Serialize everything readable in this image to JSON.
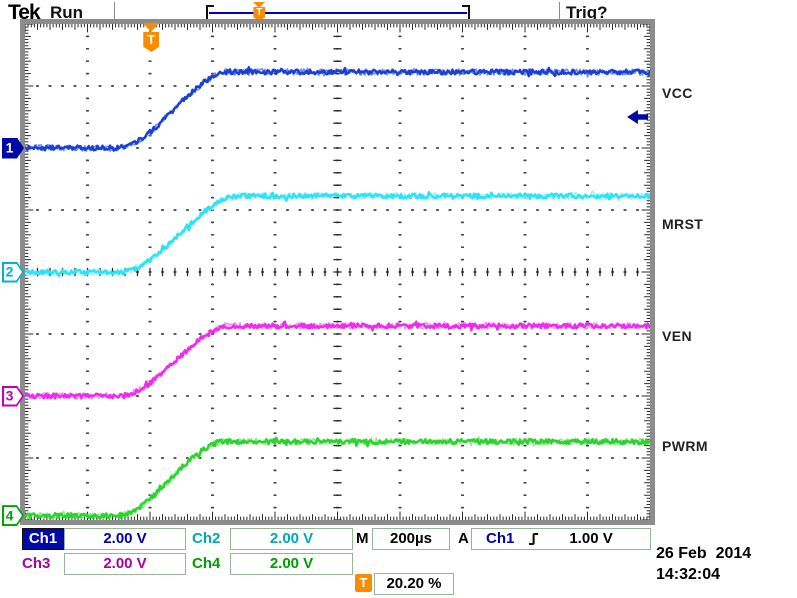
{
  "header": {
    "logo": "Tek",
    "acq_status": "Run",
    "trig_status": "Trig?"
  },
  "trigger_marker_symbol": "T",
  "channels": [
    {
      "id": "Ch1",
      "num": "1",
      "scale": "2.00 V",
      "label": "VCC",
      "trace_color": "#1b3fd6",
      "fringe_color": "#6a8cf5",
      "text_color": "#0000a8",
      "marker_color": "#0008a8",
      "marker_filled": true,
      "baseline_div": 2.0
    },
    {
      "id": "Ch2",
      "num": "2",
      "scale": "2.00 V",
      "label": "MRST",
      "trace_color": "#2ee3f5",
      "fringe_color": "#9df2fc",
      "text_color": "#00a8be",
      "marker_color": "#00b4c8",
      "marker_filled": false,
      "baseline_div": 4.0
    },
    {
      "id": "Ch3",
      "num": "3",
      "scale": "2.00 V",
      "label": "VEN",
      "trace_color": "#ee2bee",
      "fringe_color": "#f98af9",
      "text_color": "#a800a8",
      "marker_color": "#c000c0",
      "marker_filled": false,
      "baseline_div": 6.0
    },
    {
      "id": "Ch4",
      "num": "4",
      "scale": "2.00 V",
      "label": "PWRM",
      "trace_color": "#2cd32c",
      "fringe_color": "#8bee8b",
      "text_color": "#00a000",
      "marker_color": "#00a800",
      "marker_filled": false,
      "baseline_div": 7.93
    }
  ],
  "timebase": {
    "label": "M",
    "value": "200µs"
  },
  "trigger_readout": {
    "prefix": "A",
    "source": "Ch1",
    "level": "1.00 V"
  },
  "trigger_position": {
    "symbol": "T",
    "value": "20.20 %"
  },
  "datetime": {
    "date": "26 Feb  2014",
    "time": "14:32:04"
  },
  "chart_data": {
    "type": "line",
    "instrument": "oscilloscope-display",
    "x_axis": {
      "time_per_div_us": 200,
      "divisions": 10,
      "gridline_style": "dotted"
    },
    "y_axis": {
      "volts_per_div": 2.0,
      "divisions": 8
    },
    "trigger": {
      "source": "Ch1",
      "slope": "rising",
      "level_v": 1.0,
      "position_pct": 20.2
    },
    "series": [
      {
        "name": "VCC",
        "channel": "Ch1",
        "v_low_v": 0,
        "v_high_v": 2.45,
        "ramp_start_us": -110,
        "ramp_end_us": 252,
        "shape": "flat low, smooth ramp up, flat high with noise"
      },
      {
        "name": "MRST",
        "channel": "Ch2",
        "v_low_v": 0,
        "v_high_v": 2.45,
        "ramp_start_us": -100,
        "ramp_end_us": 284,
        "shape": "flat low, smooth ramp up, flat high with noise"
      },
      {
        "name": "VEN",
        "channel": "Ch3",
        "v_low_v": 0,
        "v_high_v": 2.26,
        "ramp_start_us": -103,
        "ramp_end_us": 258,
        "shape": "flat low, smooth ramp up, flat high with noise"
      },
      {
        "name": "PWRM",
        "channel": "Ch4",
        "v_low_v": 0,
        "v_high_v": 2.39,
        "ramp_start_us": -110,
        "ramp_end_us": 236,
        "shape": "flat low, smooth ramp up, flat high with noise"
      }
    ]
  }
}
